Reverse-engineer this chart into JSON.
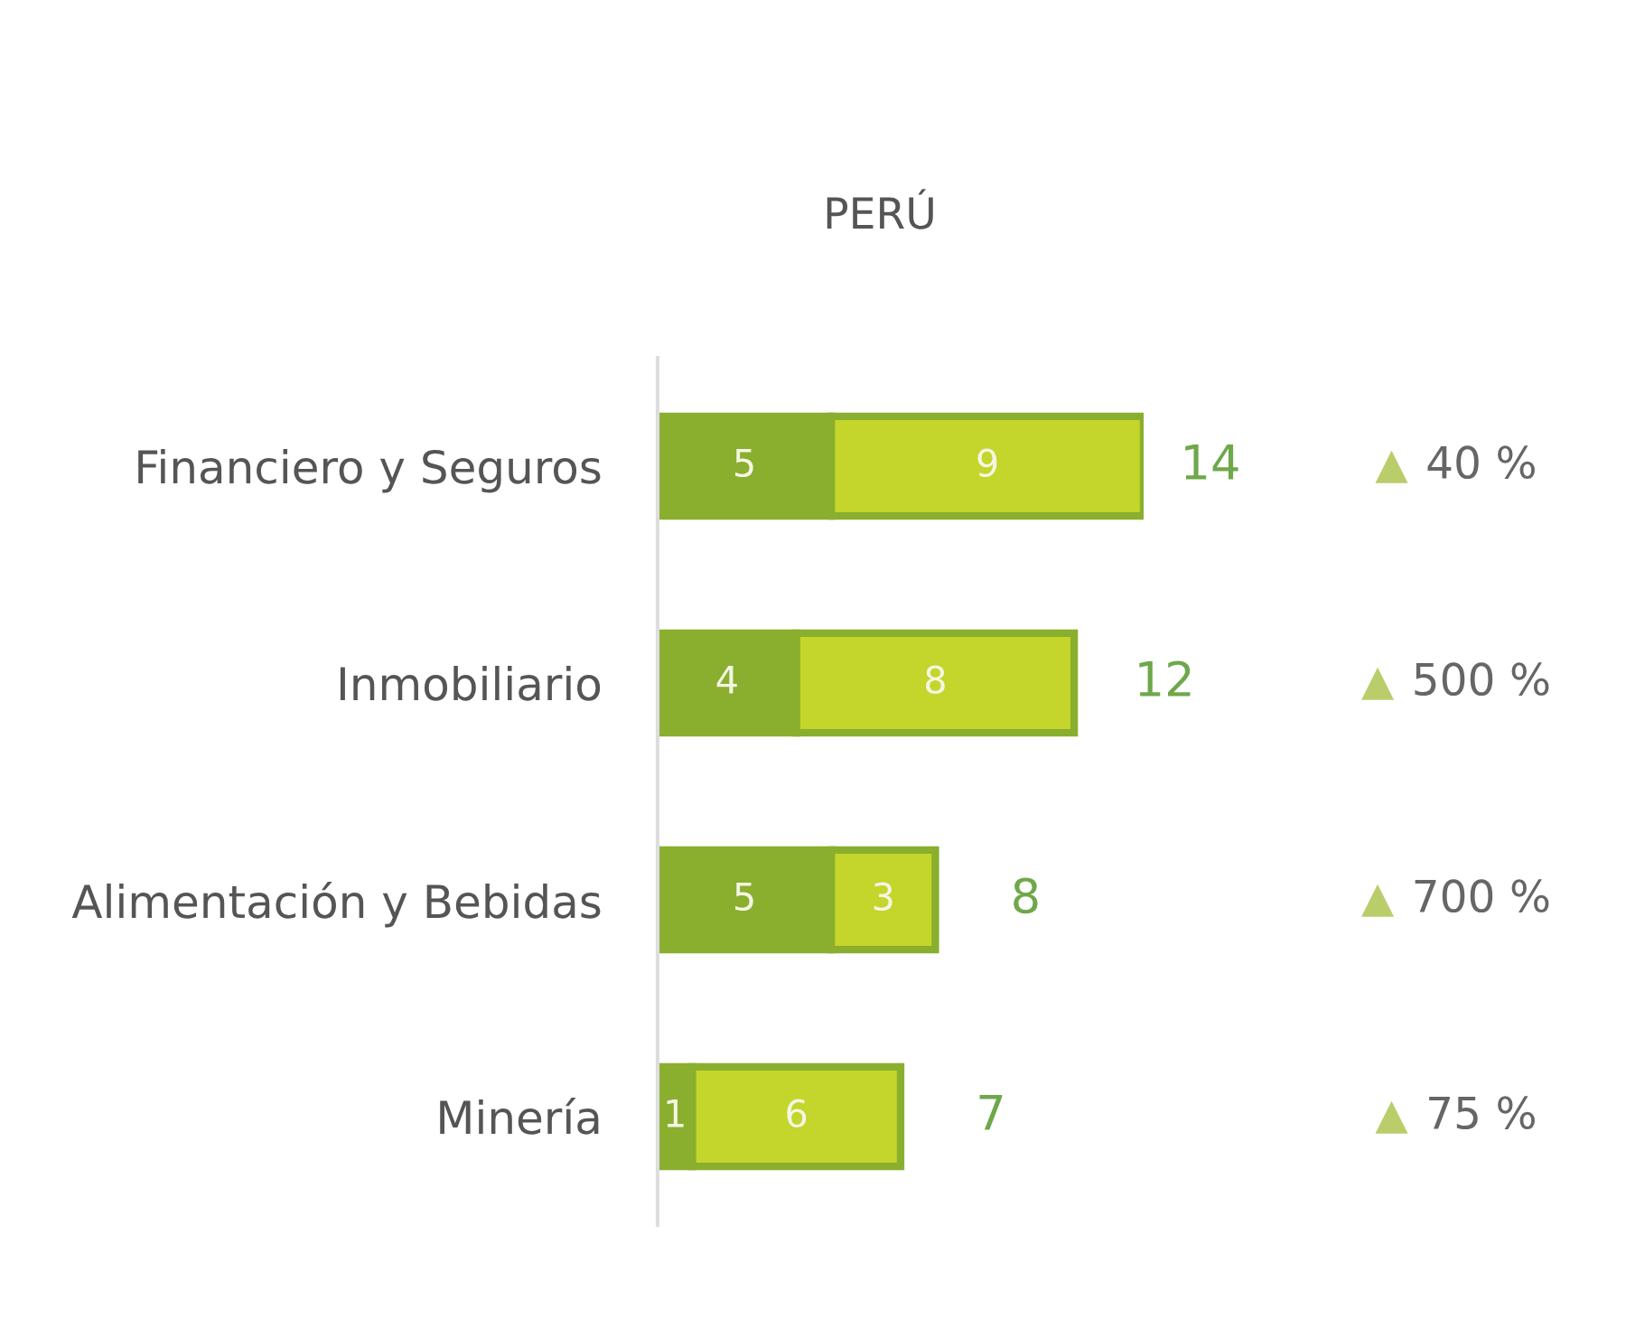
{
  "chart_data": {
    "type": "bar",
    "title": "PERÚ",
    "orientation": "horizontal",
    "stacked": true,
    "categories": [
      "Financiero y Seguros",
      "Inmobiliario",
      "Alimentación y Bebidas",
      "Minería"
    ],
    "series": [
      {
        "color": "#8aae2e",
        "values": [
          5,
          4,
          5,
          1
        ]
      },
      {
        "color": "#c4d52b",
        "values": [
          9,
          8,
          3,
          6
        ]
      }
    ],
    "data_labels": true,
    "totals": [
      "14",
      "12",
      "8",
      "7"
    ],
    "tick_labels": "y",
    "annotations": [
      "▲ 40 %",
      "▲ 500 %",
      "▲ 700 %",
      "▲ 75 %"
    ]
  }
}
